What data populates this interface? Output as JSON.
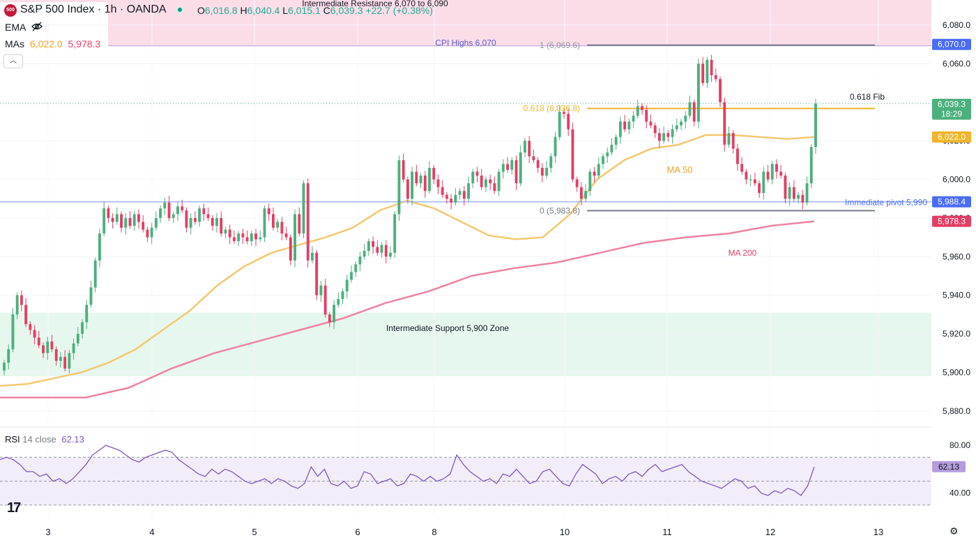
{
  "header": {
    "logo_text": "500",
    "symbol": "S&P 500 Index · 1h · OANDA",
    "status_color": "#089981",
    "o_label": "O",
    "o_value": "6,016.8",
    "h_label": "H",
    "h_value": "6,040.4",
    "l_label": "L",
    "l_value": "6,015.1",
    "c_label": "C",
    "c_value": "6,039.3",
    "change": "+22.7 (+0.38%)"
  },
  "indicators": {
    "ema_label": "EMA",
    "mas_label": "MAs",
    "ma50_value": "6,022.0",
    "ma200_value": "5,978.3",
    "rsi_label": "RSI",
    "rsi_params": "14 close",
    "rsi_value": "62.13"
  },
  "colors": {
    "up": "#4caf7d",
    "down": "#e33e64",
    "ma50": "#f4c870",
    "ma200": "#ee82a0",
    "rsi": "#7e57c2",
    "resistance_zone": "#fbdde8",
    "support_zone": "#e6f7ee",
    "pivot": "#9fb4ef",
    "fib": "#f0b429"
  },
  "chart_data": [
    {
      "type": "candlestick",
      "price_axis": {
        "ticks": [
          "6,080.0",
          "6,060.0",
          "6,040.0",
          "6,020.0",
          "6,000.0",
          "5,980.0",
          "5,960.0",
          "5,940.0",
          "5,920.0",
          "5,900.0",
          "5,880.0"
        ],
        "range": [
          5872,
          6093
        ]
      },
      "time_axis": {
        "ticks": [
          "3",
          "4",
          "5",
          "6",
          "8",
          "10",
          "11",
          "12",
          "13"
        ]
      },
      "price_labels": [
        {
          "value": "6,070.0",
          "color": "#4a6cf7"
        },
        {
          "value": "6,039.3",
          "sub": "18:29",
          "color": "#4caf7d"
        },
        {
          "value": "6,022.0",
          "color": "#f0b429"
        },
        {
          "value": "5,988.4",
          "color": "#4a6cf7"
        },
        {
          "value": "5,978.3",
          "color": "#e33e64"
        }
      ],
      "annotations": {
        "resistance": "Intermediate Resistance 6,070 to 6,090",
        "cpi_highs": "CPI Highs 6,070",
        "fib_1": "1 (6,069.6)",
        "fib_618": "0.618 (6,036.8)",
        "fib_618_note": "0.618 Fib",
        "fib_0": "0 (5,983.8)",
        "pivot": "Immediate pivot 5,990",
        "support": "Intermediate Support 5,900 Zone",
        "ma50": "MA 50",
        "ma200": "MA 200"
      },
      "levels": {
        "resistance_zone": [
          6070,
          6090
        ],
        "cpi_high": 6070,
        "fib_1": 6069.6,
        "fib_618": 6036.8,
        "fib_0": 5983.8,
        "pivot": 5988.4,
        "last_close": 6039.3,
        "support_zone": [
          5898,
          5931
        ]
      },
      "candle_closes": [
        5905,
        5912,
        5930,
        5940,
        5935,
        5925,
        5922,
        5918,
        5914,
        5910,
        5916,
        5912,
        5906,
        5908,
        5902,
        5910,
        5915,
        5920,
        5926,
        5935,
        5944,
        5958,
        5972,
        5985,
        5980,
        5978,
        5982,
        5975,
        5980,
        5976,
        5982,
        5978,
        5974,
        5970,
        5975,
        5980,
        5985,
        5988,
        5980,
        5982,
        5986,
        5984,
        5975,
        5980,
        5978,
        5985,
        5982,
        5980,
        5976,
        5980,
        5972,
        5974,
        5970,
        5968,
        5972,
        5970,
        5968,
        5972,
        5969,
        5970,
        5985,
        5982,
        5975,
        5978,
        5972,
        5970,
        5958,
        5982,
        5972,
        5998,
        5958,
        5962,
        5940,
        5945,
        5930,
        5926,
        5935,
        5938,
        5942,
        5948,
        5952,
        5956,
        5960,
        5963,
        5968,
        5965,
        5962,
        5966,
        5960,
        5962,
        5982,
        6010,
        6000,
        5990,
        6004,
        5998,
        6002,
        5994,
        6006,
        6000,
        5996,
        5992,
        5990,
        5988,
        5992,
        5994,
        5990,
        5998,
        6004,
        6002,
        5996,
        6000,
        5998,
        5994,
        6004,
        6008,
        6005,
        6010,
        5998,
        6014,
        6020,
        6012,
        6010,
        6006,
        6002,
        6006,
        6012,
        6022,
        6035,
        6034,
        6026,
        6000,
        5996,
        5990,
        5994,
        6004,
        6002,
        6008,
        6012,
        6014,
        6018,
        6022,
        6030,
        6026,
        6030,
        6033,
        6038,
        6036,
        6030,
        6028,
        6024,
        6020,
        6024,
        6022,
        6026,
        6028,
        6030,
        6033,
        6040,
        6030,
        6060,
        6050,
        6062,
        6054,
        6052,
        6040,
        6018,
        6024,
        6016,
        6008,
        6004,
        6000,
        6000,
        5998,
        5993,
        6004,
        6000,
        6008,
        6004,
        6002,
        5990,
        5996,
        5990,
        5992,
        5988,
        5998,
        6016.8,
        6039.3
      ],
      "ma50": [
        5893,
        5894,
        5897,
        5900,
        5905,
        5912,
        5922,
        5932,
        5945,
        5955,
        5962,
        5966,
        5970,
        5975,
        5984,
        5989,
        5985,
        5978,
        5971,
        5969,
        5970,
        5982,
        6000,
        6010,
        6016,
        6018,
        6023,
        6023,
        6022,
        6021,
        6022
      ],
      "ma200": [
        5887,
        5887,
        5887,
        5892,
        5902,
        5910,
        5916,
        5922,
        5928,
        5936,
        5942,
        5950,
        5954,
        5957,
        5962,
        5967,
        5970,
        5972,
        5976,
        5978.3
      ],
      "rsi": {
        "ticks": [
          "80.00",
          "40.00"
        ],
        "upper": 70,
        "mid": 50,
        "lower": 30,
        "last": 62.13,
        "values": [
          68,
          70,
          68,
          64,
          58,
          58,
          54,
          56,
          50,
          52,
          48,
          52,
          58,
          64,
          72,
          76,
          80,
          78,
          76,
          72,
          68,
          66,
          70,
          72,
          74,
          76,
          74,
          68,
          64,
          60,
          56,
          54,
          60,
          56,
          60,
          58,
          54,
          50,
          48,
          50,
          52,
          48,
          52,
          50,
          46,
          44,
          48,
          62,
          54,
          60,
          48,
          46,
          50,
          44,
          46,
          58,
          56,
          48,
          50,
          52,
          46,
          48,
          56,
          54,
          50,
          54,
          50,
          52,
          56,
          72,
          64,
          58,
          54,
          50,
          52,
          48,
          56,
          54,
          60,
          54,
          48,
          50,
          58,
          60,
          54,
          48,
          46,
          56,
          64,
          60,
          56,
          48,
          52,
          54,
          50,
          56,
          58,
          54,
          60,
          64,
          58,
          60,
          62,
          64,
          58,
          54,
          50,
          48,
          46,
          44,
          48,
          52,
          50,
          44,
          46,
          40,
          38,
          42,
          40,
          44,
          42,
          38,
          46,
          62
        ]
      }
    }
  ]
}
